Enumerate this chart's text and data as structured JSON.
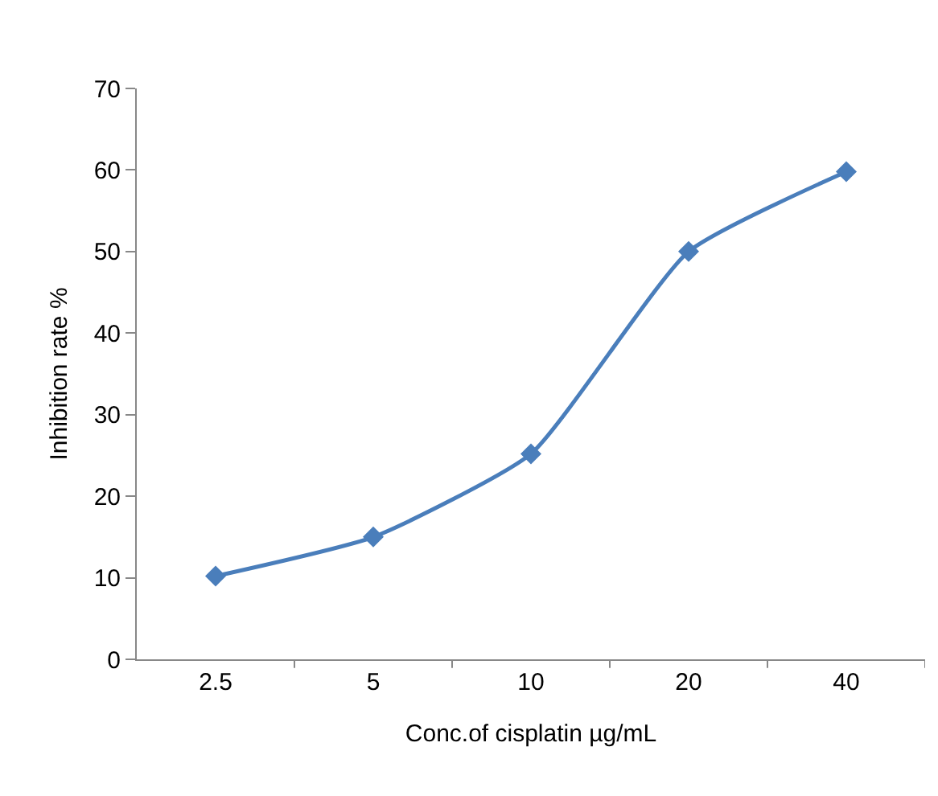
{
  "chart_data": {
    "type": "line",
    "xlabel": "Conc.of cisplatin µg/mL",
    "ylabel": "Inhibition rate %",
    "categories": [
      "2.5",
      "5",
      "10",
      "20",
      "40"
    ],
    "series": [
      {
        "color": "#4a7ebb",
        "values": [
          10.2,
          15,
          25.2,
          50,
          59.8
        ]
      }
    ],
    "ylim": [
      0,
      70
    ],
    "yticks": [
      0,
      10,
      20,
      30,
      40,
      50,
      60,
      70
    ],
    "grid": false,
    "marker": "diamond",
    "line_style": "solid"
  }
}
